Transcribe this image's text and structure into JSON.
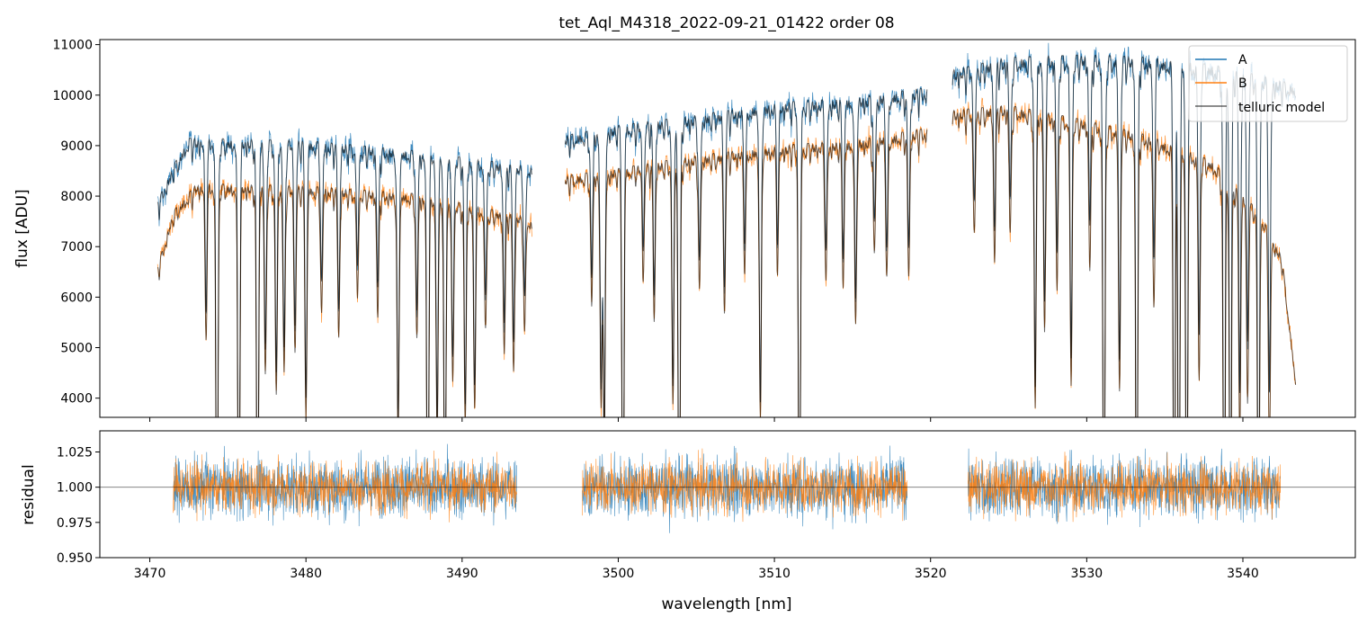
{
  "chart_data": [
    {
      "type": "line",
      "panel": "flux",
      "title": "tet_Aql_M4318_2022-09-21_01422  order 08",
      "xlabel": "",
      "ylabel": "flux [ADU]",
      "xlim": [
        3466.8,
        3547.2
      ],
      "ylim": [
        3620,
        11100
      ],
      "yticks": [
        4000,
        5000,
        6000,
        7000,
        8000,
        9000,
        10000,
        11000
      ],
      "xticks": [
        3470,
        3480,
        3490,
        3500,
        3510,
        3520,
        3530,
        3540
      ],
      "legend": {
        "position": "upper right",
        "entries": [
          "A",
          "B",
          "telluric model"
        ]
      },
      "segments": [
        {
          "start": 3470.5,
          "end": 3494.5
        },
        {
          "start": 3496.6,
          "end": 3519.8
        },
        {
          "start": 3521.4,
          "end": 3543.4
        }
      ],
      "series": [
        {
          "name": "A",
          "color": "#1f77b4",
          "continuum": [
            [
              3470.5,
              7900
            ],
            [
              3471.5,
              8600
            ],
            [
              3472.5,
              9150
            ],
            [
              3480,
              9100
            ],
            [
              3487,
              8900
            ],
            [
              3494,
              8600
            ],
            [
              3494.5,
              8600
            ],
            [
              3496.6,
              9200
            ],
            [
              3500,
              9400
            ],
            [
              3505,
              9600
            ],
            [
              3510,
              9850
            ],
            [
              3515,
              9950
            ],
            [
              3519.8,
              10150
            ],
            [
              3521.4,
              10500
            ],
            [
              3525,
              10750
            ],
            [
              3530,
              10800
            ],
            [
              3534,
              10750
            ],
            [
              3538,
              10600
            ],
            [
              3541,
              10400
            ],
            [
              3543.4,
              10200
            ]
          ]
        },
        {
          "name": "B",
          "color": "#ff7f0e",
          "continuum": [
            [
              3470.5,
              6600
            ],
            [
              3471.5,
              7700
            ],
            [
              3473,
              8250
            ],
            [
              3480,
              8200
            ],
            [
              3487,
              8050
            ],
            [
              3494,
              7600
            ],
            [
              3494.5,
              7500
            ],
            [
              3496.6,
              8400
            ],
            [
              3500,
              8550
            ],
            [
              3505,
              8800
            ],
            [
              3510,
              9000
            ],
            [
              3515,
              9100
            ],
            [
              3519.8,
              9350
            ],
            [
              3521.4,
              9700
            ],
            [
              3525,
              9800
            ],
            [
              3530,
              9500
            ],
            [
              3534,
              9200
            ],
            [
              3538,
              8700
            ],
            [
              3541,
              7700
            ],
            [
              3542.5,
              6800
            ],
            [
              3543.4,
              4300
            ]
          ]
        },
        {
          "name": "telluric model",
          "color": "#000000"
        }
      ],
      "absorption_lines": [
        {
          "wl": 3474.3,
          "depth": 1.0
        },
        {
          "wl": 3475.7,
          "depth": 1.0
        },
        {
          "wl": 3476.9,
          "depth": 1.0
        },
        {
          "wl": 3473.6,
          "depth": 0.35
        },
        {
          "wl": 3477.4,
          "depth": 0.45
        },
        {
          "wl": 3478.1,
          "depth": 0.5
        },
        {
          "wl": 3478.6,
          "depth": 0.45
        },
        {
          "wl": 3479.3,
          "depth": 0.4
        },
        {
          "wl": 3480.0,
          "depth": 0.55
        },
        {
          "wl": 3481.0,
          "depth": 0.3
        },
        {
          "wl": 3482.1,
          "depth": 0.35
        },
        {
          "wl": 3483.3,
          "depth": 0.25
        },
        {
          "wl": 3484.6,
          "depth": 0.3
        },
        {
          "wl": 3485.9,
          "depth": 0.6
        },
        {
          "wl": 3487.1,
          "depth": 0.35
        },
        {
          "wl": 3487.8,
          "depth": 1.0
        },
        {
          "wl": 3488.4,
          "depth": 0.6
        },
        {
          "wl": 3488.9,
          "depth": 0.9
        },
        {
          "wl": 3489.4,
          "depth": 0.45
        },
        {
          "wl": 3490.2,
          "depth": 0.55
        },
        {
          "wl": 3490.8,
          "depth": 0.5
        },
        {
          "wl": 3491.5,
          "depth": 0.3
        },
        {
          "wl": 3492.7,
          "depth": 0.35
        },
        {
          "wl": 3493.3,
          "depth": 0.4
        },
        {
          "wl": 3494.0,
          "depth": 0.3
        },
        {
          "wl": 3498.3,
          "depth": 0.3
        },
        {
          "wl": 3498.9,
          "depth": 0.55
        },
        {
          "wl": 3499.1,
          "depth": 0.65
        },
        {
          "wl": 3500.3,
          "depth": 1.0
        },
        {
          "wl": 3501.6,
          "depth": 0.25
        },
        {
          "wl": 3502.3,
          "depth": 0.35
        },
        {
          "wl": 3503.5,
          "depth": 0.55
        },
        {
          "wl": 3503.9,
          "depth": 1.0
        },
        {
          "wl": 3505.2,
          "depth": 0.3
        },
        {
          "wl": 3506.8,
          "depth": 0.35
        },
        {
          "wl": 3508.1,
          "depth": 0.25
        },
        {
          "wl": 3509.1,
          "depth": 0.6
        },
        {
          "wl": 3510.2,
          "depth": 0.25
        },
        {
          "wl": 3511.6,
          "depth": 1.0
        },
        {
          "wl": 3513.3,
          "depth": 0.3
        },
        {
          "wl": 3514.4,
          "depth": 0.3
        },
        {
          "wl": 3515.2,
          "depth": 0.4
        },
        {
          "wl": 3516.4,
          "depth": 0.25
        },
        {
          "wl": 3517.2,
          "depth": 0.3
        },
        {
          "wl": 3518.6,
          "depth": 0.3
        },
        {
          "wl": 3522.8,
          "depth": 0.25
        },
        {
          "wl": 3524.1,
          "depth": 0.3
        },
        {
          "wl": 3525.1,
          "depth": 0.25
        },
        {
          "wl": 3526.7,
          "depth": 0.6
        },
        {
          "wl": 3527.3,
          "depth": 0.45
        },
        {
          "wl": 3528.1,
          "depth": 0.35
        },
        {
          "wl": 3529.0,
          "depth": 0.55
        },
        {
          "wl": 3530.2,
          "depth": 0.3
        },
        {
          "wl": 3531.1,
          "depth": 1.0
        },
        {
          "wl": 3532.1,
          "depth": 0.55
        },
        {
          "wl": 3533.2,
          "depth": 1.0
        },
        {
          "wl": 3534.3,
          "depth": 0.35
        },
        {
          "wl": 3535.6,
          "depth": 1.0
        },
        {
          "wl": 3535.9,
          "depth": 1.0
        },
        {
          "wl": 3536.4,
          "depth": 1.0
        },
        {
          "wl": 3537.2,
          "depth": 0.5
        },
        {
          "wl": 3538.8,
          "depth": 1.0
        },
        {
          "wl": 3539.2,
          "depth": 1.0
        },
        {
          "wl": 3539.8,
          "depth": 0.6
        },
        {
          "wl": 3540.3,
          "depth": 0.5
        },
        {
          "wl": 3541.0,
          "depth": 1.0
        },
        {
          "wl": 3541.7,
          "depth": 0.6
        }
      ]
    },
    {
      "type": "line",
      "panel": "residual",
      "title": "",
      "xlabel": "wavelength [nm]",
      "ylabel": "residual",
      "xlim": [
        3466.8,
        3547.2
      ],
      "ylim": [
        0.95,
        1.04
      ],
      "yticks": [
        0.95,
        0.975,
        1.0,
        1.025
      ],
      "ytick_labels": [
        "0.950",
        "0.975",
        "1.000",
        "1.025"
      ],
      "xticks": [
        3470,
        3480,
        3490,
        3500,
        3510,
        3520,
        3530,
        3540
      ],
      "reference_line": 1.0,
      "segments": [
        {
          "start": 3471.5,
          "end": 3493.5
        },
        {
          "start": 3497.7,
          "end": 3518.5
        },
        {
          "start": 3522.4,
          "end": 3542.4
        }
      ],
      "noise_level": {
        "A": 0.02,
        "B": 0.017
      }
    }
  ]
}
